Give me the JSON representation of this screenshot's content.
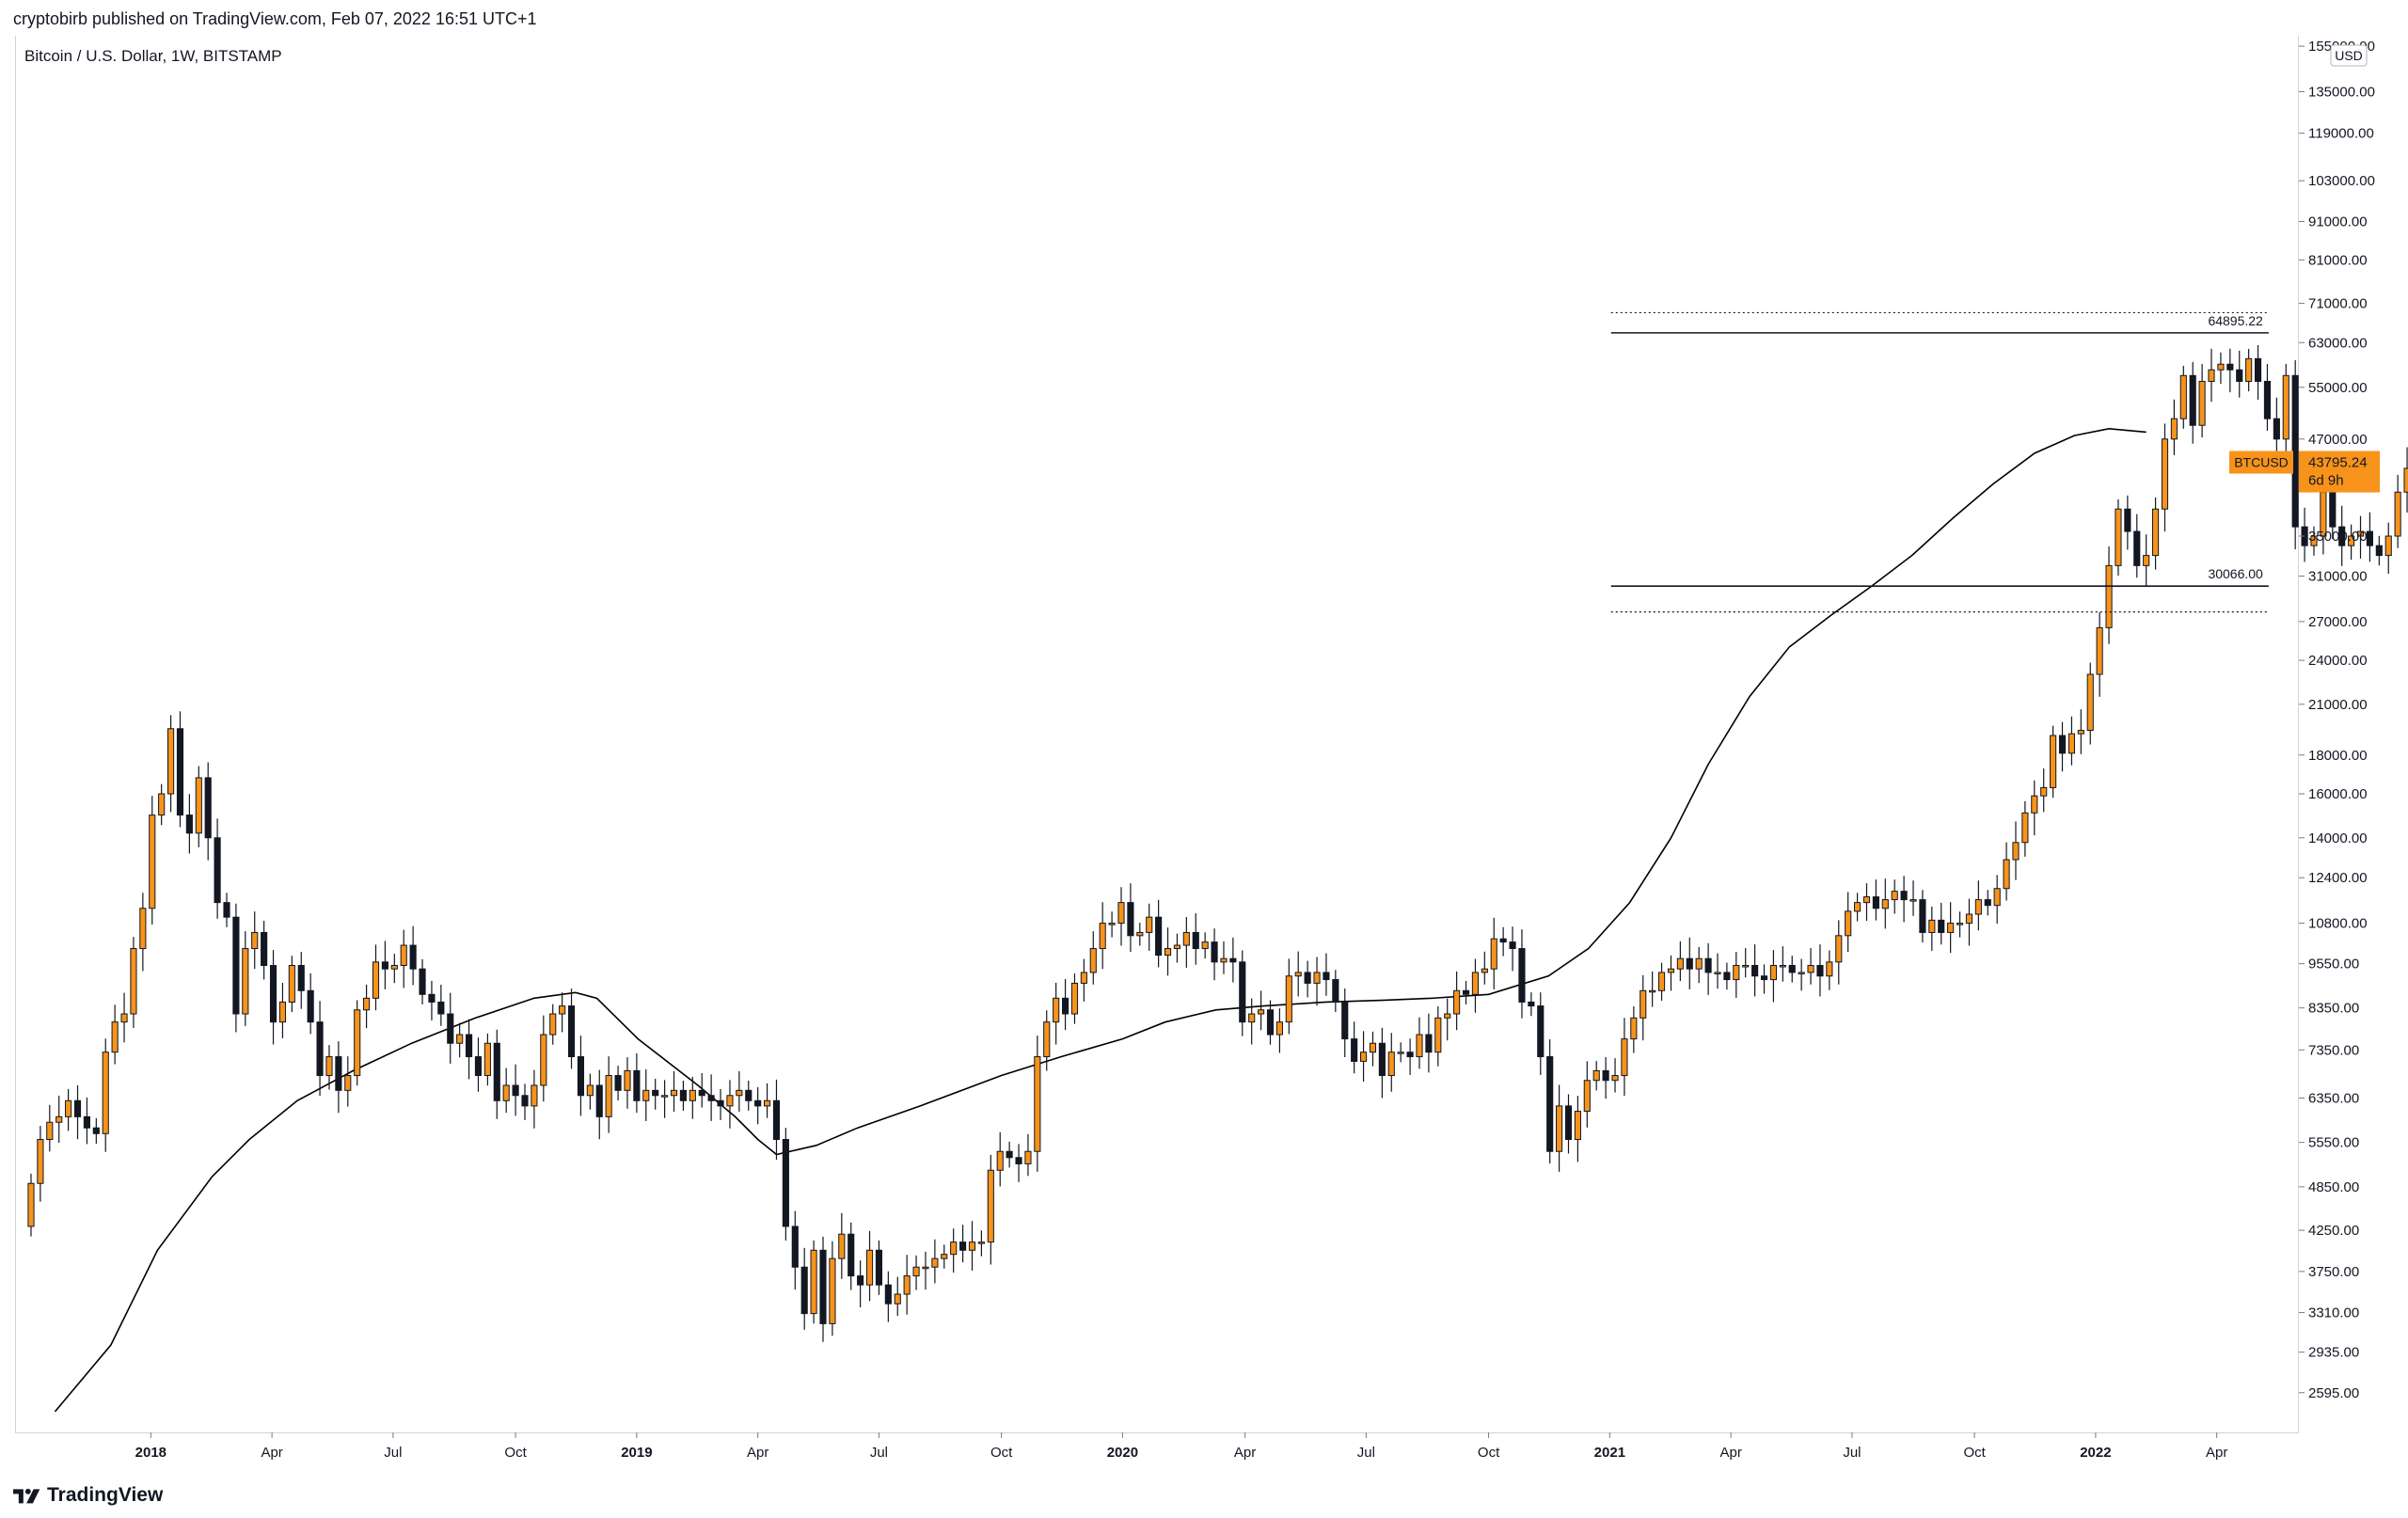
{
  "header": {
    "publisher_line": "cryptobirb published on TradingView.com, Feb 07, 2022 16:51 UTC+1"
  },
  "symbol_line": "Bitcoin / U.S. Dollar, 1W, BITSTAMP",
  "footer": {
    "brand": "TradingView",
    "logo_icon": "tradingview-logo-icon"
  },
  "colors": {
    "up": "#f7931a",
    "down": "#131722",
    "ma": "#000000",
    "label_bg": "#f7931a"
  },
  "chart_data": {
    "type": "candlestick",
    "y_scale": "log",
    "currency_label": "USD",
    "ylim": [
      2300,
      160000
    ],
    "y_ticks": [
      155000,
      135000,
      119000,
      103000,
      91000,
      81000,
      71000,
      63000,
      55000,
      47000,
      43795.24,
      35000,
      31000,
      27000,
      24000,
      21000,
      18000,
      16000,
      14000,
      12400,
      10800,
      9550,
      8350,
      7350,
      6350,
      5550,
      4850,
      4250,
      3750,
      3310,
      2935,
      2595
    ],
    "y_tick_labels": [
      "155000.00",
      "135000.00",
      "119000.00",
      "103000.00",
      "91000.00",
      "81000.00",
      "71000.00",
      "63000.00",
      "55000.00",
      "47000.00",
      "",
      "35000.00",
      "31000.00",
      "27000.00",
      "24000.00",
      "21000.00",
      "18000.00",
      "16000.00",
      "14000.00",
      "12400.00",
      "10800.00",
      "9550.00",
      "8350.00",
      "7350.00",
      "6350.00",
      "5550.00",
      "4850.00",
      "4250.00",
      "3750.00",
      "3310.00",
      "2935.00",
      "2595.00"
    ],
    "x_ticks": [
      "2017-12-31",
      "2018-04-01",
      "2018-07-01",
      "2018-10-01",
      "2018-12-31",
      "2019-04-01",
      "2019-07-01",
      "2019-10-01",
      "2019-12-31",
      "2020-04-01",
      "2020-07-01",
      "2020-10-01",
      "2020-12-31",
      "2021-04-01",
      "2021-07-01",
      "2021-10-01",
      "2021-12-31",
      "2022-04-01"
    ],
    "x_tick_labels": [
      "2018",
      "Apr",
      "Jul",
      "Oct",
      "2019",
      "Apr",
      "Jul",
      "Oct",
      "2020",
      "Apr",
      "Jul",
      "Oct",
      "2021",
      "Apr",
      "Jul",
      "Oct",
      "2022",
      "Apr"
    ],
    "x_tick_bold": [
      true,
      false,
      false,
      false,
      true,
      false,
      false,
      false,
      true,
      false,
      false,
      false,
      true,
      false,
      false,
      false,
      true,
      false
    ],
    "xlim": [
      "2017-09-20",
      "2022-06-01"
    ],
    "first_candle_date": "2017-10-02",
    "candle_interval_days": 7,
    "price_closes": [
      4900,
      5600,
      5900,
      6000,
      6300,
      6000,
      5800,
      5700,
      7300,
      8000,
      8200,
      10000,
      11300,
      15000,
      16000,
      19500,
      15000,
      14200,
      16800,
      14000,
      11500,
      11000,
      8200,
      10000,
      10500,
      9500,
      8000,
      8500,
      9500,
      8800,
      8000,
      6800,
      7200,
      6500,
      6800,
      8300,
      8600,
      9600,
      9400,
      9500,
      10100,
      9400,
      8700,
      8500,
      8200,
      7500,
      7700,
      7200,
      6800,
      7500,
      6300,
      6600,
      6400,
      6200,
      6600,
      7700,
      8200,
      8400,
      7200,
      6400,
      6600,
      6000,
      6800,
      6500,
      6900,
      6300,
      6500,
      6400,
      6400,
      6500,
      6300,
      6500,
      6400,
      6300,
      6200,
      6400,
      6500,
      6300,
      6200,
      6300,
      5600,
      4300,
      3800,
      3300,
      4000,
      3200,
      3900,
      4200,
      3700,
      3600,
      4000,
      3600,
      3400,
      3500,
      3700,
      3800,
      3800,
      3900,
      3950,
      4100,
      4000,
      4100,
      4100,
      5100,
      5400,
      5300,
      5200,
      5400,
      7200,
      8000,
      8600,
      8200,
      9000,
      9300,
      10000,
      10800,
      10800,
      11500,
      10400,
      10500,
      11000,
      9800,
      10000,
      10100,
      10500,
      10000,
      10200,
      9600,
      9700,
      9600,
      8000,
      8200,
      8300,
      7700,
      8000,
      9200,
      9300,
      9000,
      9300,
      9100,
      8500,
      7600,
      7100,
      7300,
      7500,
      6800,
      7300,
      7300,
      7200,
      7700,
      7300,
      8100,
      8200,
      8800,
      8700,
      9300,
      9400,
      10300,
      10200,
      10000,
      8500,
      8400,
      7200,
      5400,
      6200,
      5600,
      6100,
      6700,
      6900,
      6700,
      6800,
      7600,
      8100,
      8800,
      8800,
      9300,
      9400,
      9700,
      9400,
      9700,
      9300,
      9300,
      9100,
      9500,
      9500,
      9200,
      9100,
      9500,
      9500,
      9300,
      9300,
      9500,
      9200,
      9600,
      10400,
      11200,
      11500,
      11700,
      11300,
      11600,
      11900,
      11600,
      11600,
      10500,
      10900,
      10500,
      10800,
      10800,
      11100,
      11600,
      11400,
      12000,
      13100,
      13800,
      15100,
      15900,
      16300,
      19100,
      18100,
      19200,
      19400,
      23000,
      26500,
      32000,
      38000,
      35500,
      32000,
      33000,
      38000,
      47000,
      50000,
      57000,
      49000,
      56000,
      58000,
      59000,
      58000,
      56000,
      60000,
      56000,
      50000,
      47000,
      57000,
      36000,
      34000,
      35000,
      40000,
      36000,
      34000,
      35000,
      35500,
      34000,
      33000,
      35000,
      40000,
      43000,
      46000,
      47000,
      46000,
      49000,
      50000,
      47000,
      45000,
      48000,
      55000,
      61000,
      61000,
      63000,
      61000,
      64000,
      66000,
      58000,
      56000,
      50000,
      49000,
      50500,
      47000,
      47500,
      50500,
      46000,
      42000,
      41800,
      36000,
      37000,
      41000,
      43795
    ],
    "price_opens": [
      4300,
      4900,
      5600,
      5900,
      6000,
      6300,
      6000,
      5800,
      5700,
      7300,
      8000,
      8200,
      10000,
      11300,
      15000,
      16000,
      19500,
      15000,
      14200,
      16800,
      14000,
      11500,
      11000,
      8200,
      10000,
      10500,
      9500,
      8000,
      8500,
      9500,
      8800,
      8000,
      6800,
      7200,
      6500,
      6800,
      8300,
      8600,
      9600,
      9400,
      9500,
      10100,
      9400,
      8700,
      8500,
      8200,
      7500,
      7700,
      7200,
      6800,
      7500,
      6300,
      6600,
      6400,
      6200,
      6600,
      7700,
      8200,
      8400,
      7200,
      6400,
      6600,
      6000,
      6800,
      6500,
      6900,
      6300,
      6500,
      6400,
      6400,
      6500,
      6300,
      6500,
      6400,
      6300,
      6200,
      6400,
      6500,
      6300,
      6200,
      6300,
      5600,
      4300,
      3800,
      3300,
      4000,
      3200,
      3900,
      4200,
      3700,
      3600,
      4000,
      3600,
      3400,
      3500,
      3700,
      3800,
      3800,
      3900,
      3950,
      4100,
      4000,
      4100,
      4100,
      5100,
      5400,
      5300,
      5200,
      5400,
      7200,
      8000,
      8600,
      8200,
      9000,
      9300,
      10000,
      10800,
      10800,
      11500,
      10400,
      10500,
      11000,
      9800,
      10000,
      10100,
      10500,
      10000,
      10200,
      9600,
      9700,
      9600,
      8000,
      8200,
      8300,
      7700,
      8000,
      9200,
      9300,
      9000,
      9300,
      9100,
      8500,
      7600,
      7100,
      7300,
      7500,
      6800,
      7300,
      7300,
      7200,
      7700,
      7300,
      8100,
      8200,
      8800,
      8700,
      9300,
      9400,
      10300,
      10200,
      10000,
      8500,
      8400,
      7200,
      5400,
      6200,
      5600,
      6100,
      6700,
      6900,
      6700,
      6800,
      7600,
      8100,
      8800,
      8800,
      9300,
      9400,
      9700,
      9400,
      9700,
      9300,
      9300,
      9100,
      9500,
      9500,
      9200,
      9100,
      9500,
      9500,
      9300,
      9300,
      9500,
      9200,
      9600,
      10400,
      11200,
      11500,
      11700,
      11300,
      11600,
      11900,
      11600,
      11600,
      10500,
      10900,
      10500,
      10800,
      10800,
      11100,
      11600,
      11400,
      12000,
      13100,
      13800,
      15100,
      15900,
      16300,
      19100,
      18100,
      19200,
      19400,
      23000,
      26500,
      32000,
      38000,
      35500,
      32000,
      33000,
      38000,
      47000,
      50000,
      57000,
      49000,
      56000,
      58000,
      59000,
      58000,
      56000,
      60000,
      56000,
      50000,
      47000,
      57000,
      36000,
      34000,
      35000,
      40000,
      36000,
      34000,
      35000,
      35500,
      34000,
      33000,
      35000,
      40000,
      43000,
      46000,
      47000,
      46000,
      49000,
      50000,
      47000,
      45000,
      48000,
      55000,
      61000,
      61000,
      63000,
      61000,
      64000,
      66000,
      58000,
      56000,
      50000,
      49000,
      50500,
      47000,
      47500,
      50500,
      46000,
      42000,
      41800,
      36000,
      37000,
      41000
    ],
    "moving_average": {
      "points": [
        [
          "2017-10-20",
          2450
        ],
        [
          "2017-12-01",
          3000
        ],
        [
          "2018-01-05",
          4000
        ],
        [
          "2018-02-15",
          5000
        ],
        [
          "2018-03-15",
          5600
        ],
        [
          "2018-04-20",
          6300
        ],
        [
          "2018-06-01",
          6900
        ],
        [
          "2018-07-15",
          7500
        ],
        [
          "2018-09-01",
          8100
        ],
        [
          "2018-10-15",
          8600
        ],
        [
          "2018-11-15",
          8750
        ],
        [
          "2018-12-01",
          8600
        ],
        [
          "2019-01-01",
          7600
        ],
        [
          "2019-02-15",
          6600
        ],
        [
          "2019-03-15",
          6000
        ],
        [
          "2019-04-01",
          5600
        ],
        [
          "2019-04-15",
          5350
        ],
        [
          "2019-05-15",
          5500
        ],
        [
          "2019-06-15",
          5800
        ],
        [
          "2019-08-01",
          6200
        ],
        [
          "2019-10-01",
          6800
        ],
        [
          "2019-11-15",
          7200
        ],
        [
          "2019-12-31",
          7600
        ],
        [
          "2020-02-01",
          8000
        ],
        [
          "2020-03-10",
          8300
        ],
        [
          "2020-04-15",
          8400
        ],
        [
          "2020-06-01",
          8500
        ],
        [
          "2020-07-15",
          8550
        ],
        [
          "2020-08-20",
          8600
        ],
        [
          "2020-10-01",
          8700
        ],
        [
          "2020-11-15",
          9200
        ],
        [
          "2020-12-15",
          10000
        ],
        [
          "2021-01-15",
          11500
        ],
        [
          "2021-02-15",
          14000
        ],
        [
          "2021-03-15",
          17500
        ],
        [
          "2021-04-15",
          21500
        ],
        [
          "2021-05-15",
          25000
        ],
        [
          "2021-06-15",
          27500
        ],
        [
          "2021-07-15",
          30000
        ],
        [
          "2021-08-15",
          33000
        ],
        [
          "2021-09-15",
          37000
        ],
        [
          "2021-10-15",
          41000
        ],
        [
          "2021-11-15",
          45000
        ],
        [
          "2021-12-15",
          47500
        ],
        [
          "2022-01-10",
          48500
        ],
        [
          "2022-02-07",
          48000
        ]
      ]
    },
    "annotations": [
      {
        "type": "hline",
        "value": 64895.22,
        "label": "64895.22",
        "style": "solid",
        "start": "2021-01-01",
        "end": "2022-05-10"
      },
      {
        "type": "hline",
        "value": 30066.0,
        "label": "30066.00",
        "style": "solid",
        "start": "2021-01-01",
        "end": "2022-05-10"
      },
      {
        "type": "hline",
        "value": 69000,
        "label": "",
        "style": "dotted",
        "start": "2021-01-01",
        "end": "2022-05-10"
      },
      {
        "type": "hline",
        "value": 27800,
        "label": "",
        "style": "dotted",
        "start": "2021-01-01",
        "end": "2022-05-10"
      }
    ],
    "last_price": {
      "symbol": "BTCUSD",
      "price": "43795.24",
      "countdown": "6d 9h",
      "value": 43795.24
    }
  }
}
